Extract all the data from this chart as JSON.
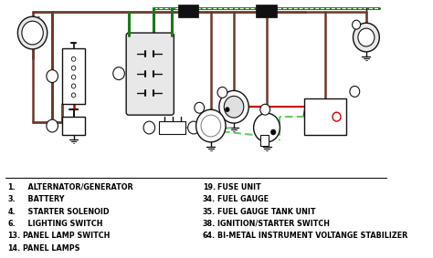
{
  "bg_color": "#ffffff",
  "legend_left": [
    [
      "1.",
      "  ALTERNATOR/GENERATOR"
    ],
    [
      "3.",
      "  BATTERY"
    ],
    [
      "4.",
      "  STARTER SOLENOID"
    ],
    [
      "6.",
      "  LIGHTING SWITCH"
    ],
    [
      "13.",
      "PANEL LAMP SWITCH"
    ],
    [
      "14.",
      "PANEL LAMPS"
    ]
  ],
  "legend_right": [
    [
      "19.",
      "FUSE UNIT"
    ],
    [
      "34.",
      "FUEL GAUGE"
    ],
    [
      "35.",
      "FUEL GAUGE TANK UNIT"
    ],
    [
      "38.",
      "IGNITION/STARTER SWITCH"
    ],
    [
      "64.",
      "BI-METAL INSTRUMENT VOLTANGE STABILIZER"
    ]
  ],
  "colors": {
    "brown": "#6B3A2A",
    "green": "#1a7a1a",
    "red": "#cc0000",
    "black": "#111111",
    "gray": "#999999",
    "light_gray": "#cccccc",
    "dkgreen_dashed": "#1a7a1a",
    "white": "#ffffff"
  }
}
